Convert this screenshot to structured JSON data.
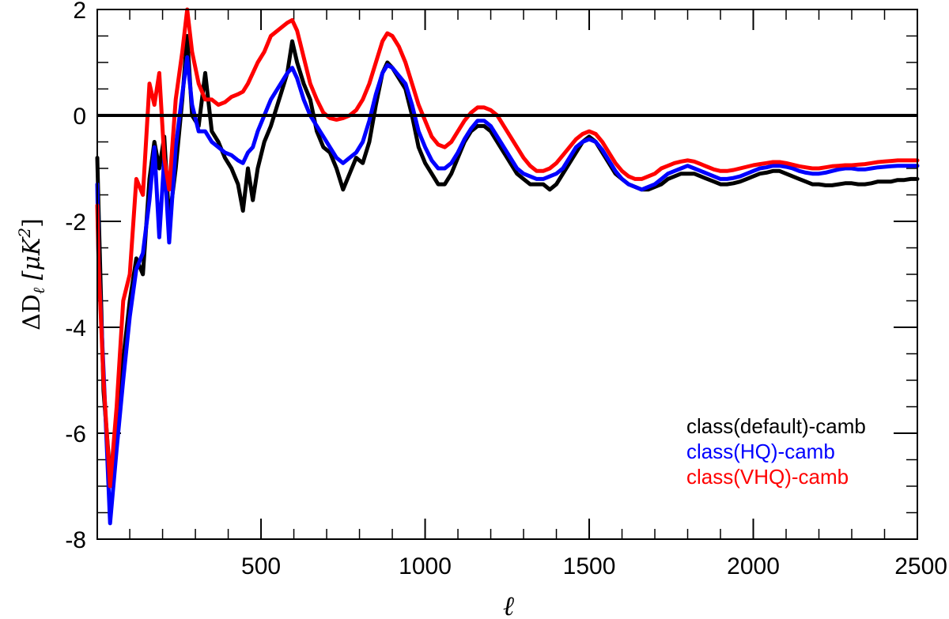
{
  "chart_data": {
    "type": "line",
    "title": "",
    "xlabel": "ℓ",
    "ylabel_parts": {
      "delta": "ΔD",
      "sub": "ℓ",
      "mid": " [μK",
      "sup": "2",
      "end": "]"
    },
    "xlim": [
      1,
      2500
    ],
    "ylim": [
      -8,
      2
    ],
    "xticks": [
      500,
      1000,
      1500,
      2000,
      2500
    ],
    "xtick_labels": [
      "500",
      "1000",
      "1500",
      "2000",
      "2500"
    ],
    "yticks": [
      -8,
      -6,
      -4,
      -2,
      0,
      2
    ],
    "ytick_labels": [
      "-8",
      "-6",
      "-4",
      "-2",
      "0",
      "2"
    ],
    "zero_line": 0,
    "legend_position": "bottom-right",
    "series": [
      {
        "name": "class(default)-camb",
        "color": "#000000",
        "x": [
          1,
          5,
          20,
          40,
          60,
          80,
          100,
          120,
          140,
          160,
          175,
          190,
          205,
          220,
          240,
          260,
          275,
          290,
          310,
          330,
          350,
          370,
          390,
          410,
          430,
          445,
          460,
          475,
          490,
          510,
          530,
          560,
          580,
          595,
          610,
          630,
          650,
          670,
          690,
          710,
          730,
          750,
          770,
          790,
          810,
          830,
          850,
          870,
          885,
          900,
          920,
          940,
          960,
          980,
          1000,
          1020,
          1040,
          1060,
          1080,
          1100,
          1120,
          1140,
          1160,
          1180,
          1200,
          1220,
          1240,
          1260,
          1280,
          1300,
          1320,
          1340,
          1360,
          1380,
          1400,
          1420,
          1440,
          1460,
          1480,
          1500,
          1520,
          1540,
          1560,
          1580,
          1600,
          1620,
          1640,
          1660,
          1680,
          1700,
          1720,
          1740,
          1760,
          1780,
          1800,
          1820,
          1840,
          1860,
          1880,
          1900,
          1920,
          1940,
          1960,
          1980,
          2000,
          2020,
          2040,
          2060,
          2080,
          2100,
          2120,
          2140,
          2160,
          2180,
          2200,
          2220,
          2240,
          2260,
          2280,
          2300,
          2320,
          2340,
          2360,
          2380,
          2400,
          2420,
          2440,
          2460,
          2480,
          2500
        ],
        "y": [
          -0.8,
          -1.8,
          -5.2,
          -6.8,
          -6.2,
          -4.6,
          -3.5,
          -2.7,
          -3.0,
          -1.2,
          -0.5,
          -1.0,
          -0.4,
          -2.0,
          -1.0,
          0.3,
          1.5,
          0.0,
          -0.2,
          0.8,
          -0.3,
          -0.5,
          -0.8,
          -1.0,
          -1.3,
          -1.8,
          -1.0,
          -1.6,
          -1.0,
          -0.5,
          -0.2,
          0.4,
          0.8,
          1.4,
          1.0,
          0.6,
          0.3,
          -0.3,
          -0.6,
          -0.7,
          -1.0,
          -1.4,
          -1.1,
          -0.8,
          -0.9,
          -0.5,
          0.2,
          0.8,
          1.0,
          0.9,
          0.7,
          0.5,
          0.0,
          -0.6,
          -0.9,
          -1.1,
          -1.3,
          -1.3,
          -1.1,
          -0.8,
          -0.5,
          -0.3,
          -0.2,
          -0.2,
          -0.3,
          -0.5,
          -0.7,
          -0.9,
          -1.1,
          -1.2,
          -1.3,
          -1.3,
          -1.3,
          -1.4,
          -1.3,
          -1.1,
          -0.9,
          -0.7,
          -0.5,
          -0.4,
          -0.5,
          -0.7,
          -0.9,
          -1.1,
          -1.2,
          -1.3,
          -1.35,
          -1.4,
          -1.4,
          -1.35,
          -1.3,
          -1.2,
          -1.15,
          -1.1,
          -1.1,
          -1.1,
          -1.15,
          -1.2,
          -1.25,
          -1.3,
          -1.3,
          -1.28,
          -1.25,
          -1.2,
          -1.15,
          -1.1,
          -1.08,
          -1.05,
          -1.05,
          -1.1,
          -1.15,
          -1.2,
          -1.25,
          -1.3,
          -1.3,
          -1.32,
          -1.32,
          -1.3,
          -1.28,
          -1.28,
          -1.3,
          -1.3,
          -1.28,
          -1.25,
          -1.25,
          -1.25,
          -1.22,
          -1.22,
          -1.2,
          -1.2
        ]
      },
      {
        "name": "class(HQ)-camb",
        "color": "#0000ff",
        "x": [
          1,
          5,
          20,
          40,
          60,
          80,
          100,
          120,
          140,
          160,
          175,
          190,
          205,
          220,
          240,
          260,
          275,
          290,
          310,
          330,
          350,
          370,
          390,
          410,
          430,
          445,
          460,
          475,
          490,
          510,
          530,
          560,
          580,
          595,
          610,
          630,
          650,
          670,
          690,
          710,
          730,
          750,
          770,
          790,
          810,
          830,
          850,
          870,
          885,
          900,
          920,
          940,
          960,
          980,
          1000,
          1020,
          1040,
          1060,
          1080,
          1100,
          1120,
          1140,
          1160,
          1180,
          1200,
          1220,
          1240,
          1260,
          1280,
          1300,
          1320,
          1340,
          1360,
          1380,
          1400,
          1420,
          1440,
          1460,
          1480,
          1500,
          1520,
          1540,
          1560,
          1580,
          1600,
          1620,
          1640,
          1660,
          1680,
          1700,
          1720,
          1740,
          1760,
          1780,
          1800,
          1820,
          1840,
          1860,
          1880,
          1900,
          1920,
          1940,
          1960,
          1980,
          2000,
          2020,
          2040,
          2060,
          2080,
          2100,
          2120,
          2140,
          2160,
          2180,
          2200,
          2220,
          2240,
          2260,
          2280,
          2300,
          2320,
          2340,
          2360,
          2380,
          2400,
          2420,
          2440,
          2460,
          2480,
          2500
        ],
        "y": [
          -1.3,
          -2.8,
          -4.8,
          -7.7,
          -6.3,
          -5.0,
          -3.8,
          -2.9,
          -2.6,
          -1.6,
          -0.6,
          -2.3,
          -0.8,
          -2.4,
          -0.6,
          0.4,
          1.1,
          0.2,
          -0.3,
          -0.3,
          -0.5,
          -0.6,
          -0.7,
          -0.75,
          -0.85,
          -0.9,
          -0.7,
          -0.6,
          -0.3,
          0.0,
          0.3,
          0.6,
          0.8,
          0.9,
          0.7,
          0.3,
          0.0,
          -0.2,
          -0.4,
          -0.6,
          -0.8,
          -0.9,
          -0.8,
          -0.7,
          -0.5,
          -0.1,
          0.4,
          0.8,
          0.95,
          0.9,
          0.75,
          0.6,
          0.2,
          -0.3,
          -0.6,
          -0.85,
          -1.0,
          -1.0,
          -0.9,
          -0.7,
          -0.45,
          -0.25,
          -0.1,
          -0.1,
          -0.2,
          -0.4,
          -0.6,
          -0.8,
          -1.0,
          -1.1,
          -1.15,
          -1.2,
          -1.2,
          -1.15,
          -1.1,
          -1.0,
          -0.8,
          -0.6,
          -0.5,
          -0.45,
          -0.5,
          -0.65,
          -0.85,
          -1.05,
          -1.2,
          -1.3,
          -1.35,
          -1.4,
          -1.35,
          -1.3,
          -1.2,
          -1.1,
          -1.05,
          -1.0,
          -0.95,
          -1.0,
          -1.05,
          -1.1,
          -1.15,
          -1.2,
          -1.2,
          -1.18,
          -1.15,
          -1.1,
          -1.05,
          -1.0,
          -0.98,
          -0.95,
          -0.95,
          -0.97,
          -1.0,
          -1.05,
          -1.08,
          -1.1,
          -1.1,
          -1.08,
          -1.05,
          -1.02,
          -1.0,
          -1.0,
          -1.02,
          -1.02,
          -1.0,
          -0.98,
          -0.97,
          -0.96,
          -0.95,
          -0.95,
          -0.95,
          -0.95
        ]
      },
      {
        "name": "class(VHQ)-camb",
        "color": "#ff0000",
        "x": [
          1,
          5,
          20,
          40,
          60,
          80,
          100,
          120,
          140,
          160,
          175,
          190,
          205,
          220,
          240,
          260,
          275,
          290,
          310,
          330,
          350,
          370,
          390,
          410,
          430,
          445,
          460,
          475,
          490,
          510,
          530,
          560,
          580,
          595,
          610,
          630,
          650,
          670,
          690,
          710,
          730,
          750,
          770,
          790,
          810,
          830,
          850,
          870,
          885,
          900,
          920,
          940,
          960,
          980,
          1000,
          1020,
          1040,
          1060,
          1080,
          1100,
          1120,
          1140,
          1160,
          1180,
          1200,
          1220,
          1240,
          1260,
          1280,
          1300,
          1320,
          1340,
          1360,
          1380,
          1400,
          1420,
          1440,
          1460,
          1480,
          1500,
          1520,
          1540,
          1560,
          1580,
          1600,
          1620,
          1640,
          1660,
          1680,
          1700,
          1720,
          1740,
          1760,
          1780,
          1800,
          1820,
          1840,
          1860,
          1880,
          1900,
          1920,
          1940,
          1960,
          1980,
          2000,
          2020,
          2040,
          2060,
          2080,
          2100,
          2120,
          2140,
          2160,
          2180,
          2200,
          2220,
          2240,
          2260,
          2280,
          2300,
          2320,
          2340,
          2360,
          2380,
          2400,
          2420,
          2440,
          2460,
          2480,
          2500
        ],
        "y": [
          -1.7,
          -2.8,
          -5.0,
          -7.0,
          -5.5,
          -3.5,
          -3.0,
          -1.2,
          -1.5,
          0.6,
          0.2,
          0.8,
          -0.8,
          -1.4,
          0.3,
          1.2,
          2.0,
          1.2,
          0.6,
          0.3,
          0.3,
          0.2,
          0.25,
          0.35,
          0.4,
          0.45,
          0.6,
          0.8,
          1.0,
          1.2,
          1.5,
          1.65,
          1.75,
          1.8,
          1.6,
          1.1,
          0.6,
          0.3,
          0.05,
          -0.05,
          -0.08,
          -0.05,
          0.0,
          0.1,
          0.3,
          0.6,
          1.0,
          1.4,
          1.55,
          1.5,
          1.3,
          1.0,
          0.6,
          0.2,
          -0.1,
          -0.4,
          -0.55,
          -0.6,
          -0.5,
          -0.3,
          -0.1,
          0.05,
          0.15,
          0.15,
          0.1,
          0.0,
          -0.2,
          -0.4,
          -0.6,
          -0.8,
          -0.95,
          -1.05,
          -1.05,
          -1.0,
          -0.9,
          -0.75,
          -0.6,
          -0.45,
          -0.35,
          -0.3,
          -0.35,
          -0.5,
          -0.7,
          -0.9,
          -1.05,
          -1.15,
          -1.2,
          -1.2,
          -1.15,
          -1.1,
          -1.0,
          -0.95,
          -0.9,
          -0.87,
          -0.85,
          -0.87,
          -0.92,
          -0.97,
          -1.02,
          -1.05,
          -1.05,
          -1.03,
          -1.0,
          -0.97,
          -0.94,
          -0.92,
          -0.9,
          -0.88,
          -0.88,
          -0.9,
          -0.93,
          -0.96,
          -0.98,
          -1.0,
          -1.0,
          -0.98,
          -0.96,
          -0.95,
          -0.94,
          -0.94,
          -0.93,
          -0.92,
          -0.9,
          -0.88,
          -0.87,
          -0.86,
          -0.85,
          -0.85,
          -0.85,
          -0.85
        ]
      }
    ]
  }
}
